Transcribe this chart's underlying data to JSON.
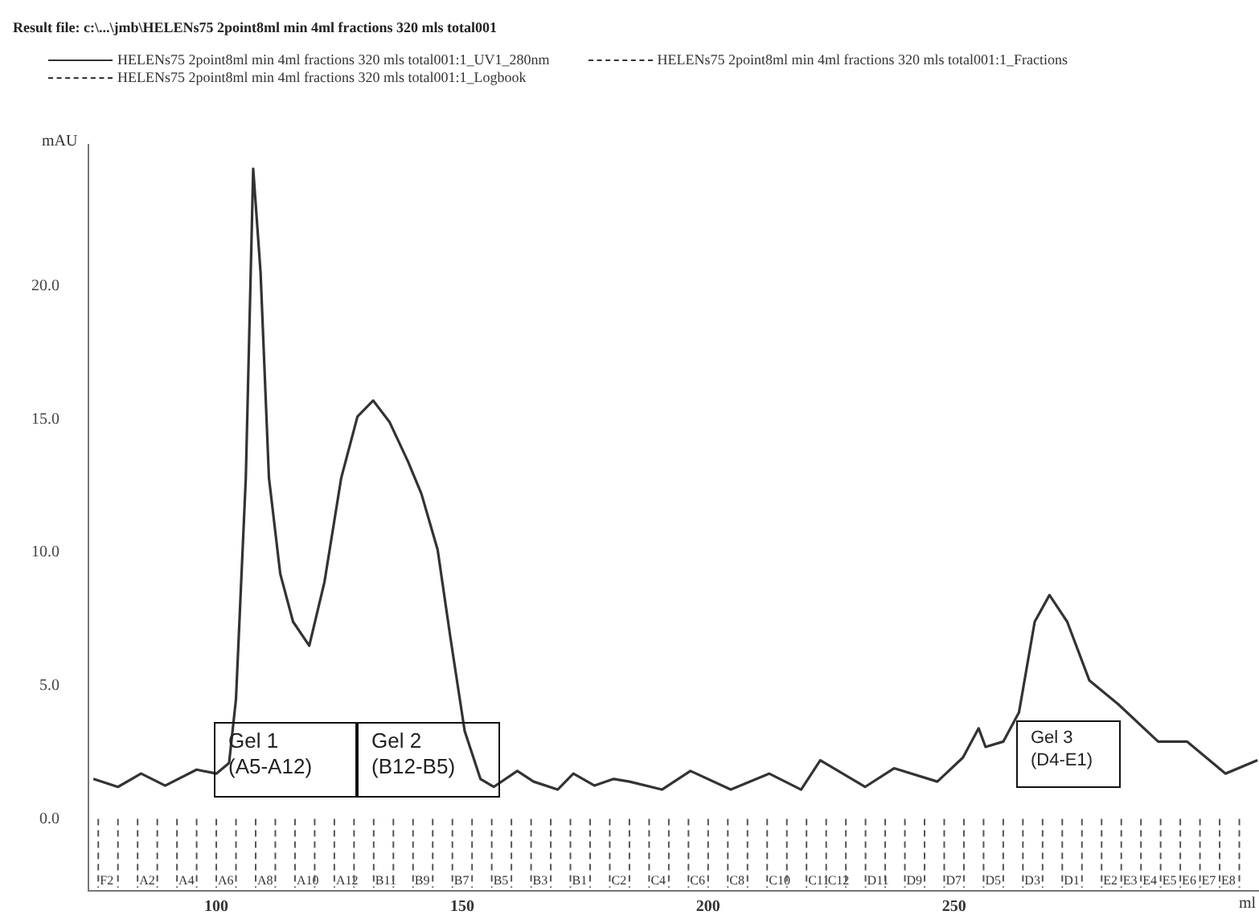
{
  "chart_data": {
    "type": "line",
    "title": "Result file: c:\\...\\jmb\\HELENs75 2point8ml min 4ml fractions 320 mls total001",
    "xlabel": "ml",
    "ylabel": "mAU",
    "legend": "top left",
    "xlim": [
      74,
      312
    ],
    "xticks": [
      100,
      150,
      200,
      250
    ],
    "ylim": [
      -2.7,
      25.3
    ],
    "yticks": [
      {
        "value": 0,
        "label": "0.0"
      },
      {
        "value": 5,
        "label": "5.0"
      },
      {
        "value": 10,
        "label": "10.0"
      },
      {
        "value": 15,
        "label": "15.0"
      },
      {
        "value": 20,
        "label": "20.0"
      }
    ],
    "series": [
      {
        "name": "HELENs75 2point8ml min 4ml fractions 320 mls total001:1_UV1_280nm",
        "color": "#333333",
        "line_style": "solid",
        "x": [
          75,
          80,
          84.7,
          89.6,
          96,
          100,
          102.6,
          104,
          106,
          107.5,
          109,
          110.7,
          113,
          115.6,
          118.9,
          122,
          125.4,
          128.7,
          131.9,
          135.2,
          139,
          141.7,
          145,
          147.6,
          150.5,
          153.7,
          156.4,
          161.2,
          164.5,
          169.4,
          172.6,
          176.9,
          180.8,
          184,
          190.6,
          196.4,
          204.6,
          212.4,
          218.9,
          222.8,
          231.9,
          237.8,
          246.6,
          251.8,
          255,
          256.4,
          260,
          263.2,
          266.4,
          269.4,
          273,
          277.5,
          283.4,
          291.5,
          297.4,
          305.2,
          311.7
        ],
        "values": [
          1.5,
          1.2,
          1.7,
          1.25,
          1.85,
          1.7,
          2.1,
          4.5,
          12.8,
          24.4,
          20.5,
          12.8,
          9.2,
          7.4,
          6.5,
          8.9,
          12.8,
          15.1,
          15.7,
          14.9,
          13.4,
          12.2,
          10.1,
          6.8,
          3.3,
          1.5,
          1.2,
          1.8,
          1.4,
          1.1,
          1.7,
          1.25,
          1.5,
          1.4,
          1.1,
          1.8,
          1.1,
          1.7,
          1.1,
          2.2,
          1.2,
          1.9,
          1.4,
          2.3,
          3.4,
          2.7,
          2.9,
          4.0,
          7.4,
          8.4,
          7.4,
          5.2,
          4.3,
          2.9,
          2.9,
          1.7,
          2.2
        ]
      }
    ],
    "annotations": [
      "HELENs75 2point8ml min 4ml fractions 320 mls total001:1_Fractions",
      "HELENs75 2point8ml min 4ml fractions 320 mls total001:1_Logbook",
      "Gel 1\n(A5-A12)",
      "Gel 2\n(B12-B5)",
      "Gel 3\n(D4-E1)"
    ],
    "ref_lines": [
      {
        "axis": "x",
        "value": 76,
        "label": "F2",
        "line_style": "dashed"
      },
      {
        "axis": "x",
        "value": 80,
        "label": null,
        "line_style": "dashed"
      },
      {
        "axis": "x",
        "value": 84,
        "label": "A2",
        "line_style": "dashed"
      },
      {
        "axis": "x",
        "value": 88,
        "label": null,
        "line_style": "dashed"
      },
      {
        "axis": "x",
        "value": 92,
        "label": "A4",
        "line_style": "dashed"
      },
      {
        "axis": "x",
        "value": 96,
        "label": null,
        "line_style": "dashed"
      },
      {
        "axis": "x",
        "value": 100,
        "label": "A6",
        "line_style": "dashed"
      },
      {
        "axis": "x",
        "value": 104,
        "label": null,
        "line_style": "dashed"
      },
      {
        "axis": "x",
        "value": 108,
        "label": "A8",
        "line_style": "dashed"
      },
      {
        "axis": "x",
        "value": 112,
        "label": null,
        "line_style": "dashed"
      },
      {
        "axis": "x",
        "value": 116,
        "label": "A10",
        "line_style": "dashed"
      },
      {
        "axis": "x",
        "value": 120,
        "label": null,
        "line_style": "dashed"
      },
      {
        "axis": "x",
        "value": 124,
        "label": "A12",
        "line_style": "dashed"
      },
      {
        "axis": "x",
        "value": 128,
        "label": null,
        "line_style": "dashed"
      },
      {
        "axis": "x",
        "value": 132,
        "label": "B11",
        "line_style": "dashed"
      },
      {
        "axis": "x",
        "value": 136,
        "label": null,
        "line_style": "dashed"
      },
      {
        "axis": "x",
        "value": 140,
        "label": "B9",
        "line_style": "dashed"
      },
      {
        "axis": "x",
        "value": 144,
        "label": null,
        "line_style": "dashed"
      },
      {
        "axis": "x",
        "value": 148,
        "label": "B7",
        "line_style": "dashed"
      },
      {
        "axis": "x",
        "value": 152,
        "label": null,
        "line_style": "dashed"
      },
      {
        "axis": "x",
        "value": 156,
        "label": "B5",
        "line_style": "dashed"
      },
      {
        "axis": "x",
        "value": 160,
        "label": null,
        "line_style": "dashed"
      },
      {
        "axis": "x",
        "value": 164,
        "label": "B3",
        "line_style": "dashed"
      },
      {
        "axis": "x",
        "value": 168,
        "label": null,
        "line_style": "dashed"
      },
      {
        "axis": "x",
        "value": 172,
        "label": "B1",
        "line_style": "dashed"
      },
      {
        "axis": "x",
        "value": 176,
        "label": null,
        "line_style": "dashed"
      },
      {
        "axis": "x",
        "value": 180,
        "label": "C2",
        "line_style": "dashed"
      },
      {
        "axis": "x",
        "value": 184,
        "label": null,
        "line_style": "dashed"
      },
      {
        "axis": "x",
        "value": 188,
        "label": "C4",
        "line_style": "dashed"
      },
      {
        "axis": "x",
        "value": 192,
        "label": null,
        "line_style": "dashed"
      },
      {
        "axis": "x",
        "value": 196,
        "label": "C6",
        "line_style": "dashed"
      },
      {
        "axis": "x",
        "value": 200,
        "label": null,
        "line_style": "dashed"
      },
      {
        "axis": "x",
        "value": 204,
        "label": "C8",
        "line_style": "dashed"
      },
      {
        "axis": "x",
        "value": 208,
        "label": null,
        "line_style": "dashed"
      },
      {
        "axis": "x",
        "value": 212,
        "label": "C10",
        "line_style": "dashed"
      },
      {
        "axis": "x",
        "value": 216,
        "label": null,
        "line_style": "dashed"
      },
      {
        "axis": "x",
        "value": 220,
        "label": "C11",
        "line_style": "dashed"
      },
      {
        "axis": "x",
        "value": 224,
        "label": "C12",
        "line_style": "dashed"
      },
      {
        "axis": "x",
        "value": 228,
        "label": null,
        "line_style": "dashed"
      },
      {
        "axis": "x",
        "value": 232,
        "label": "D11",
        "line_style": "dashed"
      },
      {
        "axis": "x",
        "value": 236,
        "label": null,
        "line_style": "dashed"
      },
      {
        "axis": "x",
        "value": 240,
        "label": "D9",
        "line_style": "dashed"
      },
      {
        "axis": "x",
        "value": 244,
        "label": null,
        "line_style": "dashed"
      },
      {
        "axis": "x",
        "value": 248,
        "label": "D7",
        "line_style": "dashed"
      },
      {
        "axis": "x",
        "value": 252,
        "label": null,
        "line_style": "dashed"
      },
      {
        "axis": "x",
        "value": 256,
        "label": "D5",
        "line_style": "dashed"
      },
      {
        "axis": "x",
        "value": 260,
        "label": null,
        "line_style": "dashed"
      },
      {
        "axis": "x",
        "value": 264,
        "label": "D3",
        "line_style": "dashed"
      },
      {
        "axis": "x",
        "value": 268,
        "label": null,
        "line_style": "dashed"
      },
      {
        "axis": "x",
        "value": 272,
        "label": "D1",
        "line_style": "dashed"
      },
      {
        "axis": "x",
        "value": 276,
        "label": null,
        "line_style": "dashed"
      },
      {
        "axis": "x",
        "value": 280,
        "label": "E2",
        "line_style": "dashed"
      },
      {
        "axis": "x",
        "value": 284,
        "label": "E3",
        "line_style": "dashed"
      },
      {
        "axis": "x",
        "value": 288,
        "label": "E4",
        "line_style": "dashed"
      },
      {
        "axis": "x",
        "value": 292,
        "label": "E5",
        "line_style": "dashed"
      },
      {
        "axis": "x",
        "value": 296,
        "label": "E6",
        "line_style": "dashed"
      },
      {
        "axis": "x",
        "value": 300,
        "label": "E7",
        "line_style": "dashed"
      },
      {
        "axis": "x",
        "value": 304,
        "label": "E8",
        "line_style": "dashed"
      },
      {
        "axis": "x",
        "value": 308,
        "label": null,
        "line_style": "dashed"
      }
    ]
  }
}
